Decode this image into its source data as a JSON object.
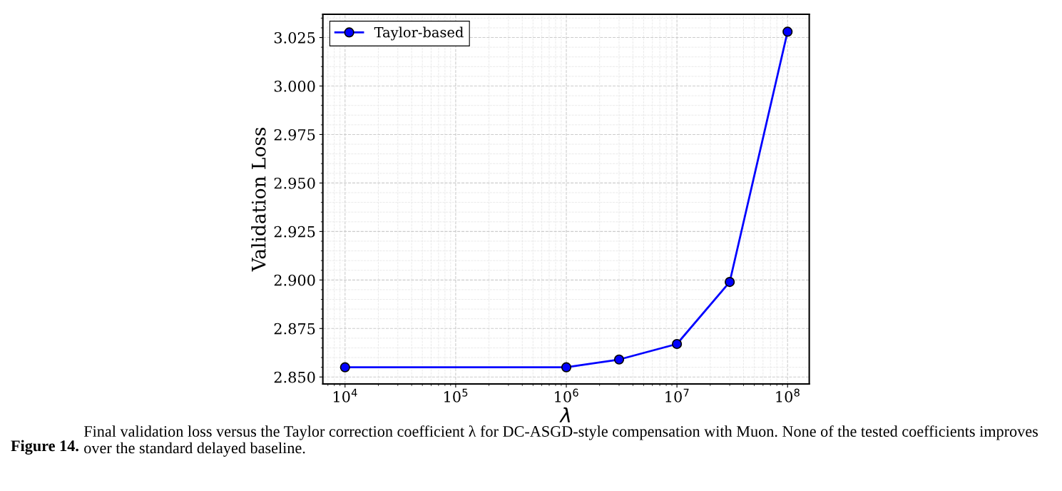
{
  "chart_data": {
    "type": "line",
    "xlabel": "λ",
    "ylabel": "Validation Loss",
    "x": [
      10000,
      1000000,
      3000000,
      10000000,
      30000000,
      100000000
    ],
    "series": [
      {
        "name": "Taylor-based",
        "color": "#0000ff",
        "values": [
          2.855,
          2.855,
          2.859,
          2.867,
          2.899,
          3.028
        ]
      }
    ],
    "log": "x",
    "marker": "circle",
    "line_style": "solid",
    "grid": true,
    "legend": "top left",
    "xlim": [
      6300,
      157000000
    ],
    "xticks": [
      {
        "value": 10000,
        "label": "10$^{4}$"
      },
      {
        "value": 100000,
        "label": "10$^{5}$"
      },
      {
        "value": 1000000,
        "label": "10$^{6}$"
      },
      {
        "value": 10000000,
        "label": "10$^{7}$"
      },
      {
        "value": 100000000,
        "label": "10$^{8}$"
      }
    ],
    "ylim": [
      2.8464,
      3.037
    ],
    "yticks": [
      {
        "value": 2.85,
        "label": "2.850"
      },
      {
        "value": 2.875,
        "label": "2.875"
      },
      {
        "value": 2.9,
        "label": "2.900"
      },
      {
        "value": 2.925,
        "label": "2.925"
      },
      {
        "value": 2.95,
        "label": "2.950"
      },
      {
        "value": 2.975,
        "label": "2.975"
      },
      {
        "value": 3.0,
        "label": "3.000"
      },
      {
        "value": 3.025,
        "label": "3.025"
      }
    ],
    "annotations": [
      "Figure 14.",
      "Final validation loss versus the Taylor correction coefficient λ for DC-ASGD-style compensation with Muon. None of the tested coefficients improves over the standard delayed baseline."
    ]
  }
}
